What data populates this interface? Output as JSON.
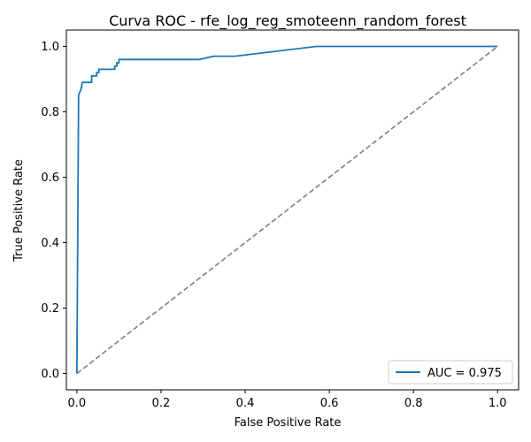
{
  "chart_data": {
    "type": "line",
    "title": "Curva ROC - rfe_log_reg_smoteenn_random_forest",
    "xlabel": "False Positive Rate",
    "ylabel": "True Positive Rate",
    "xlim": [
      -0.025,
      1.05
    ],
    "ylim": [
      -0.05,
      1.05
    ],
    "xticks": [
      0.0,
      0.2,
      0.4,
      0.6,
      0.8,
      1.0
    ],
    "yticks": [
      0.0,
      0.2,
      0.4,
      0.6,
      0.8,
      1.0
    ],
    "xtick_labels": [
      "0.0",
      "0.2",
      "0.4",
      "0.6",
      "0.8",
      "1.0"
    ],
    "ytick_labels": [
      "0.0",
      "0.2",
      "0.4",
      "0.6",
      "0.8",
      "1.0"
    ],
    "grid": false,
    "legend_position": "bottom-right",
    "series": [
      {
        "name": "AUC = 0.975",
        "color": "#1f77b4",
        "style": "solid",
        "x": [
          0.0,
          0.004,
          0.004,
          0.007,
          0.007,
          0.01,
          0.01,
          0.013,
          0.013,
          0.035,
          0.035,
          0.047,
          0.047,
          0.052,
          0.052,
          0.09,
          0.09,
          0.095,
          0.095,
          0.1,
          0.1,
          0.105,
          0.105,
          0.29,
          0.325,
          0.375,
          0.57,
          1.0
        ],
        "y": [
          0.0,
          0.85,
          0.85,
          0.86,
          0.86,
          0.87,
          0.87,
          0.89,
          0.89,
          0.89,
          0.91,
          0.91,
          0.92,
          0.92,
          0.93,
          0.93,
          0.94,
          0.94,
          0.95,
          0.95,
          0.96,
          0.96,
          0.96,
          0.96,
          0.97,
          0.97,
          1.0,
          1.0
        ]
      },
      {
        "name": "",
        "color": "#7f7f7f",
        "style": "dashed",
        "x": [
          0.0,
          1.0
        ],
        "y": [
          0.0,
          1.0
        ]
      }
    ]
  }
}
